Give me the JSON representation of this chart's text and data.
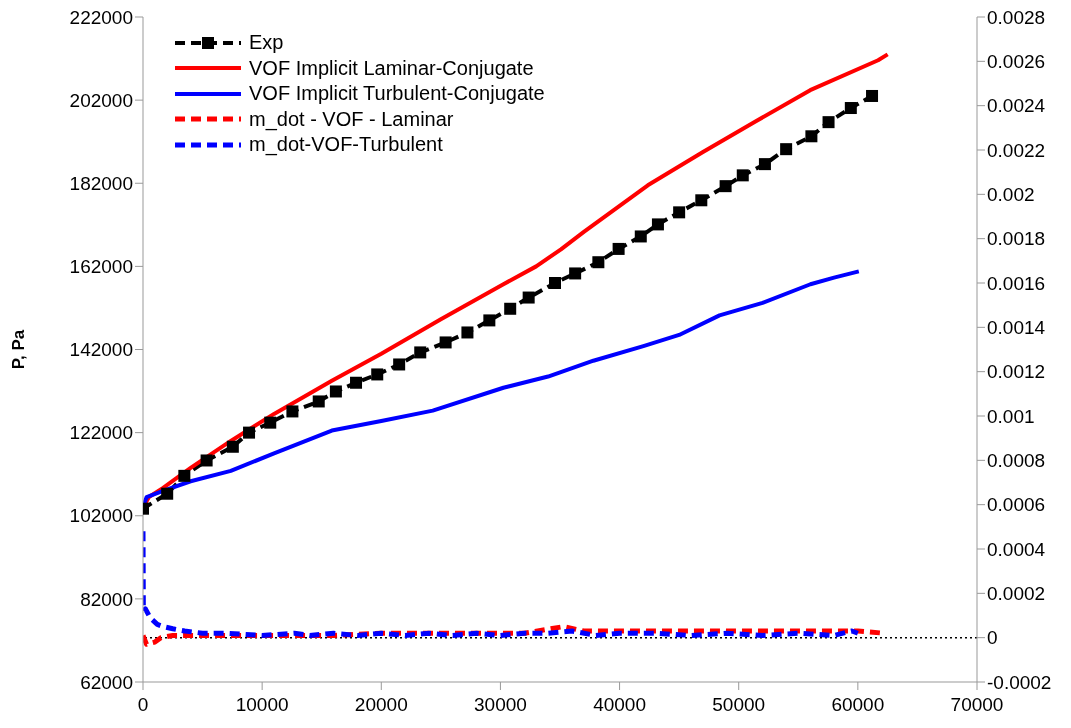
{
  "chart_data": {
    "type": "line",
    "ylabel": "P, Pa",
    "xlim": [
      0,
      70000
    ],
    "xticks": [
      0,
      10000,
      20000,
      30000,
      40000,
      50000,
      60000,
      70000
    ],
    "ylim": [
      62000,
      222000
    ],
    "yticks": [
      62000,
      82000,
      102000,
      122000,
      142000,
      162000,
      182000,
      202000,
      222000
    ],
    "y2lim": [
      -0.0002,
      0.0028
    ],
    "y2ticks": [
      -0.0002,
      0,
      0.0002,
      0.0004,
      0.0006,
      0.0008,
      0.001,
      0.0012,
      0.0014,
      0.0016,
      0.0018,
      0.002,
      0.0022,
      0.0024,
      0.0026,
      0.0028
    ],
    "legend": "top left",
    "ref_lines": [
      {
        "axis": "y2",
        "value": 0,
        "color": "#000000",
        "line_style": "dotted"
      }
    ],
    "series": [
      {
        "name": "Exp",
        "color": "#000000",
        "marker": "square",
        "line_style": "dashed",
        "x": [
          0,
          2030,
          3470,
          5340,
          7540,
          8900,
          10680,
          12540,
          14750,
          16190,
          17880,
          19660,
          21500,
          23270,
          25400,
          27230,
          29070,
          30820,
          32370,
          34580,
          36270,
          38220,
          39920,
          41780,
          43220,
          45000,
          46860,
          48900,
          50340,
          52200,
          53980,
          56100,
          57540,
          59410,
          61190
        ],
        "values": [
          103700,
          107300,
          111600,
          115300,
          118600,
          122000,
          124400,
          127100,
          129500,
          131900,
          134000,
          136000,
          138400,
          141300,
          143700,
          146100,
          149000,
          151800,
          154500,
          158000,
          160300,
          163000,
          166200,
          169200,
          172100,
          175000,
          177900,
          181300,
          183900,
          186600,
          190200,
          193300,
          196700,
          200100,
          203000
        ]
      },
      {
        "name": "VOF Implicit Laminar-Conjugate",
        "color": "#ff0000",
        "marker": "none",
        "line_style": "solid",
        "x": [
          0,
          500,
          1690,
          4000,
          7370,
          11000,
          15850,
          20000,
          25000,
          30250,
          33000,
          35080,
          37000,
          42370,
          47000,
          51440,
          56000,
          61700,
          62500
        ],
        "values": [
          104000,
          106500,
          108700,
          113500,
          120000,
          126500,
          134500,
          141000,
          149300,
          157700,
          162000,
          166100,
          170300,
          181500,
          189500,
          196900,
          204400,
          211600,
          213000
        ]
      },
      {
        "name": "VOF Implicit Turbulent-Conjugate",
        "color": "#0000ff",
        "marker": "none",
        "line_style": "solid",
        "x": [
          0,
          300,
          1690,
          4000,
          7370,
          11000,
          15850,
          20000,
          24320,
          30250,
          34000,
          37800,
          42000,
          45000,
          48390,
          52000,
          56020,
          58000,
          60080
        ],
        "values": [
          104000,
          106500,
          108000,
          110300,
          112800,
          117000,
          122500,
          124800,
          127300,
          132800,
          135500,
          139300,
          142800,
          145500,
          150200,
          153200,
          157700,
          159300,
          160800
        ]
      },
      {
        "name": "m_dot - VOF - Laminar",
        "color": "#ff0000",
        "marker": "none",
        "line_style": "dashed",
        "axis": "y2",
        "x": [
          0,
          300,
          1000,
          1500,
          2500,
          5000,
          8000,
          12000,
          16000,
          20000,
          24000,
          28000,
          32000,
          35300,
          37000,
          41000,
          45000,
          49000,
          53000,
          57000,
          60000,
          62200
        ],
        "values": [
          1e-05,
          -3e-05,
          -2e-05,
          0,
          1e-05,
          1e-05,
          1e-05,
          1e-05,
          1e-05,
          2e-05,
          2e-05,
          2e-05,
          2e-05,
          5e-05,
          3e-05,
          3e-05,
          3e-05,
          3e-05,
          3e-05,
          3e-05,
          3e-05,
          2e-05
        ]
      },
      {
        "name": "m_dot-VOF-Turbulent",
        "color": "#0000ff",
        "marker": "none",
        "line_style": "dashed",
        "axis": "y2",
        "x": [
          0,
          30,
          200,
          600,
          1200,
          1700,
          2500,
          3500,
          5000,
          7000,
          10000,
          12700,
          14000,
          16000,
          18000,
          20000,
          22000,
          24000,
          26000,
          28000,
          30000,
          32000,
          34000,
          36000,
          38000,
          40000,
          43000,
          46000,
          49000,
          52000,
          55000,
          58000,
          59500,
          60000
        ],
        "values": [
          0.00048,
          0.00012,
          0.00013,
          9e-05,
          6e-05,
          5e-05,
          4e-05,
          3e-05,
          2e-05,
          2e-05,
          1e-05,
          2e-05,
          1e-05,
          2e-05,
          1e-05,
          2e-05,
          1e-05,
          2e-05,
          1e-05,
          2e-05,
          1e-05,
          2e-05,
          2e-05,
          3e-05,
          1e-05,
          2e-05,
          2e-05,
          1e-05,
          2e-05,
          1e-05,
          2e-05,
          1e-05,
          3e-05,
          2e-05
        ]
      }
    ]
  }
}
